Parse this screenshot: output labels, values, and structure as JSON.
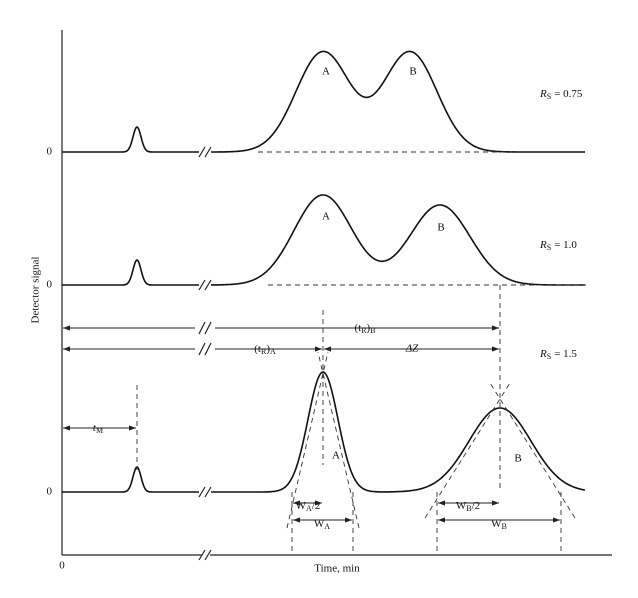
{
  "axes": {
    "y_label": "Detector signal",
    "x_label": "Time, min",
    "origin": "0"
  },
  "traces": [
    {
      "baseline_label": "0",
      "peaks": [
        "A",
        "B"
      ],
      "resolution": {
        "symbol": "R",
        "sub": "S",
        "value": "= 0.75"
      }
    },
    {
      "baseline_label": "0",
      "peaks": [
        "A",
        "B"
      ],
      "resolution": {
        "symbol": "R",
        "sub": "S",
        "value": "= 1.0"
      }
    },
    {
      "baseline_label": "0",
      "peaks": [
        "A",
        "B"
      ],
      "resolution": {
        "symbol": "R",
        "sub": "S",
        "value": "= 1.5"
      }
    }
  ],
  "annotations": {
    "retention_B": {
      "open": "(t",
      "sub": "R",
      "close": ")",
      "peak": "B"
    },
    "retention_A": {
      "open": "(t",
      "sub": "R",
      "close": ")",
      "peak": "A"
    },
    "delta_z": "ΔZ",
    "dead_time": {
      "symbol": "t",
      "sub": "M"
    },
    "half_width_A": {
      "symbol": "W",
      "sub": "A",
      "suffix": "/2"
    },
    "width_A": {
      "symbol": "W",
      "sub": "A"
    },
    "half_width_B": {
      "symbol": "W",
      "sub": "B",
      "suffix": "/2"
    },
    "width_B": {
      "symbol": "W",
      "sub": "B"
    }
  }
}
